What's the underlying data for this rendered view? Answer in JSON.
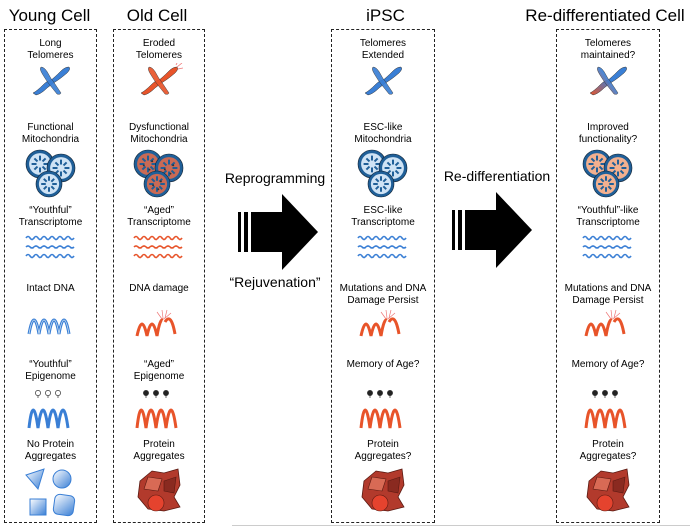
{
  "columns": [
    {
      "title": "Young Cell",
      "items": [
        [
          "Long",
          "Telomeres"
        ],
        [
          "Functional",
          "Mitochondria"
        ],
        [
          "“Youthful”",
          "Transcriptome"
        ],
        [
          "Intact DNA"
        ],
        [
          "“Youthful”",
          "Epigenome"
        ],
        [
          "No Protein",
          "Aggregates"
        ]
      ]
    },
    {
      "title": "Old Cell",
      "items": [
        [
          "Eroded",
          "Telomeres"
        ],
        [
          "Dysfunctional",
          "Mitochondria"
        ],
        [
          "“Aged”",
          "Transcriptome"
        ],
        [
          "DNA damage"
        ],
        [
          "“Aged”",
          "Epigenome"
        ],
        [
          "Protein",
          "Aggregates"
        ]
      ]
    },
    {
      "title": "iPSC",
      "items": [
        [
          "Telomeres",
          "Extended"
        ],
        [
          "ESC-like",
          "Mitochondria"
        ],
        [
          "ESC-like",
          "Transcriptome"
        ],
        [
          "Mutations and DNA",
          "Damage Persist"
        ],
        [
          "Memory of Age?"
        ],
        [
          "Protein",
          "Aggregates?"
        ]
      ]
    },
    {
      "title": "Re-differentiated Cell",
      "items": [
        [
          "Telomeres",
          "maintained?"
        ],
        [
          "Improved",
          "functionality?"
        ],
        [
          "“Youthful”-like",
          "Transcriptome"
        ],
        [
          "Mutations and DNA",
          "Damage Persist"
        ],
        [
          "Memory of Age?"
        ],
        [
          "Protein",
          "Aggregates?"
        ]
      ]
    }
  ],
  "arrows": {
    "reprogramming": "Reprogramming",
    "rejuvenation": "“Rejuvenation”",
    "redifferentiation": "Re-differentiation"
  },
  "colors": {
    "young_blue": "#3a7fd5",
    "old_orange": "#e8542a",
    "mito_blue": "#1f5f98",
    "aggregate_red": "#b23a2c"
  }
}
